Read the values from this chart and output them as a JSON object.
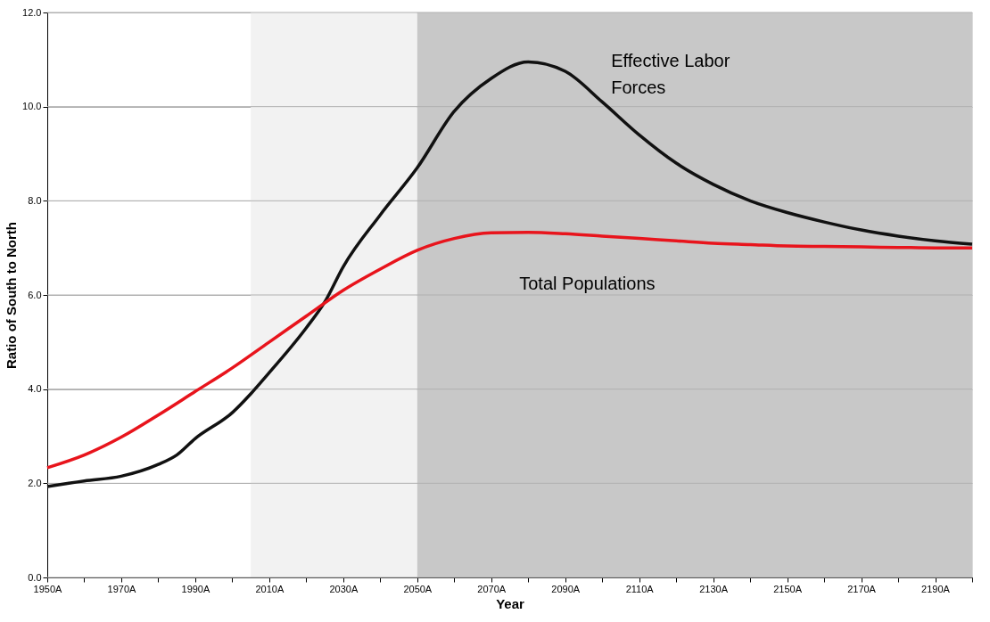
{
  "chart_data": {
    "type": "line",
    "xlabel": "Year",
    "ylabel": "Ratio of South to North",
    "x": [
      1950,
      1960,
      1970,
      1980,
      1985,
      1990,
      2000,
      2005,
      2010,
      2020,
      2025,
      2030,
      2040,
      2050,
      2060,
      2070,
      2080,
      2090,
      2100,
      2110,
      2120,
      2130,
      2140,
      2150,
      2160,
      2170,
      2180,
      2190,
      2200
    ],
    "series": [
      {
        "name": "Effective Labor Forces",
        "color": "#111111",
        "values": [
          1.93,
          2.05,
          2.15,
          2.4,
          2.6,
          2.95,
          3.5,
          3.9,
          4.35,
          5.3,
          5.85,
          6.6,
          7.7,
          8.7,
          9.9,
          10.6,
          10.95,
          10.75,
          10.1,
          9.4,
          8.8,
          8.35,
          8.0,
          7.75,
          7.55,
          7.38,
          7.25,
          7.15,
          7.08
        ]
      },
      {
        "name": "Total Populations",
        "color": "#e8141c",
        "x": [
          1950,
          1960,
          1970,
          1980,
          1990,
          2000,
          2010,
          2020,
          2030,
          2040,
          2050,
          2060,
          2070,
          2080,
          2090,
          2100,
          2110,
          2120,
          2130,
          2140,
          2150,
          2160,
          2170,
          2180,
          2190,
          2200
        ],
        "values": [
          2.33,
          2.6,
          2.98,
          3.45,
          3.95,
          4.45,
          5.0,
          5.55,
          6.1,
          6.55,
          6.95,
          7.2,
          7.32,
          7.33,
          7.3,
          7.25,
          7.2,
          7.15,
          7.1,
          7.07,
          7.04,
          7.03,
          7.02,
          7.01,
          7.0,
          7.0
        ]
      }
    ],
    "xlim": [
      1950,
      2200
    ],
    "xticks": [
      {
        "value": 1950,
        "label": "1950A"
      },
      {
        "value": 1960,
        "label": null
      },
      {
        "value": 1970,
        "label": "1970A"
      },
      {
        "value": 1980,
        "label": null
      },
      {
        "value": 1990,
        "label": "1990A"
      },
      {
        "value": 2000,
        "label": null
      },
      {
        "value": 2010,
        "label": "2010A"
      },
      {
        "value": 2020,
        "label": null
      },
      {
        "value": 2030,
        "label": "2030A"
      },
      {
        "value": 2040,
        "label": null
      },
      {
        "value": 2050,
        "label": "2050A"
      },
      {
        "value": 2060,
        "label": null
      },
      {
        "value": 2070,
        "label": "2070A"
      },
      {
        "value": 2080,
        "label": null
      },
      {
        "value": 2090,
        "label": "2090A"
      },
      {
        "value": 2100,
        "label": null
      },
      {
        "value": 2110,
        "label": "2110A"
      },
      {
        "value": 2120,
        "label": null
      },
      {
        "value": 2130,
        "label": "2130A"
      },
      {
        "value": 2140,
        "label": null
      },
      {
        "value": 2150,
        "label": "2150A"
      },
      {
        "value": 2160,
        "label": null
      },
      {
        "value": 2170,
        "label": "2170A"
      },
      {
        "value": 2180,
        "label": null
      },
      {
        "value": 2190,
        "label": "2190A"
      },
      {
        "value": 2200,
        "label": null
      }
    ],
    "ylim": [
      0,
      12
    ],
    "yticks": [
      {
        "value": 0,
        "label": "0.0"
      },
      {
        "value": 2,
        "label": "2.0"
      },
      {
        "value": 4,
        "label": "4.0"
      },
      {
        "value": 6,
        "label": "6.0"
      },
      {
        "value": 8,
        "label": "8.0"
      },
      {
        "value": 10,
        "label": "10.0"
      },
      {
        "value": 12,
        "label": "12.0"
      }
    ],
    "bands": [
      {
        "axis": "x",
        "from": 2005,
        "to": 2050,
        "color": "#f2f2f2"
      },
      {
        "axis": "x",
        "from": 2050,
        "to": 2200,
        "color": "#c8c8c8"
      }
    ],
    "grid": "y",
    "legend": false,
    "marker": "none",
    "line_style": "solid"
  }
}
